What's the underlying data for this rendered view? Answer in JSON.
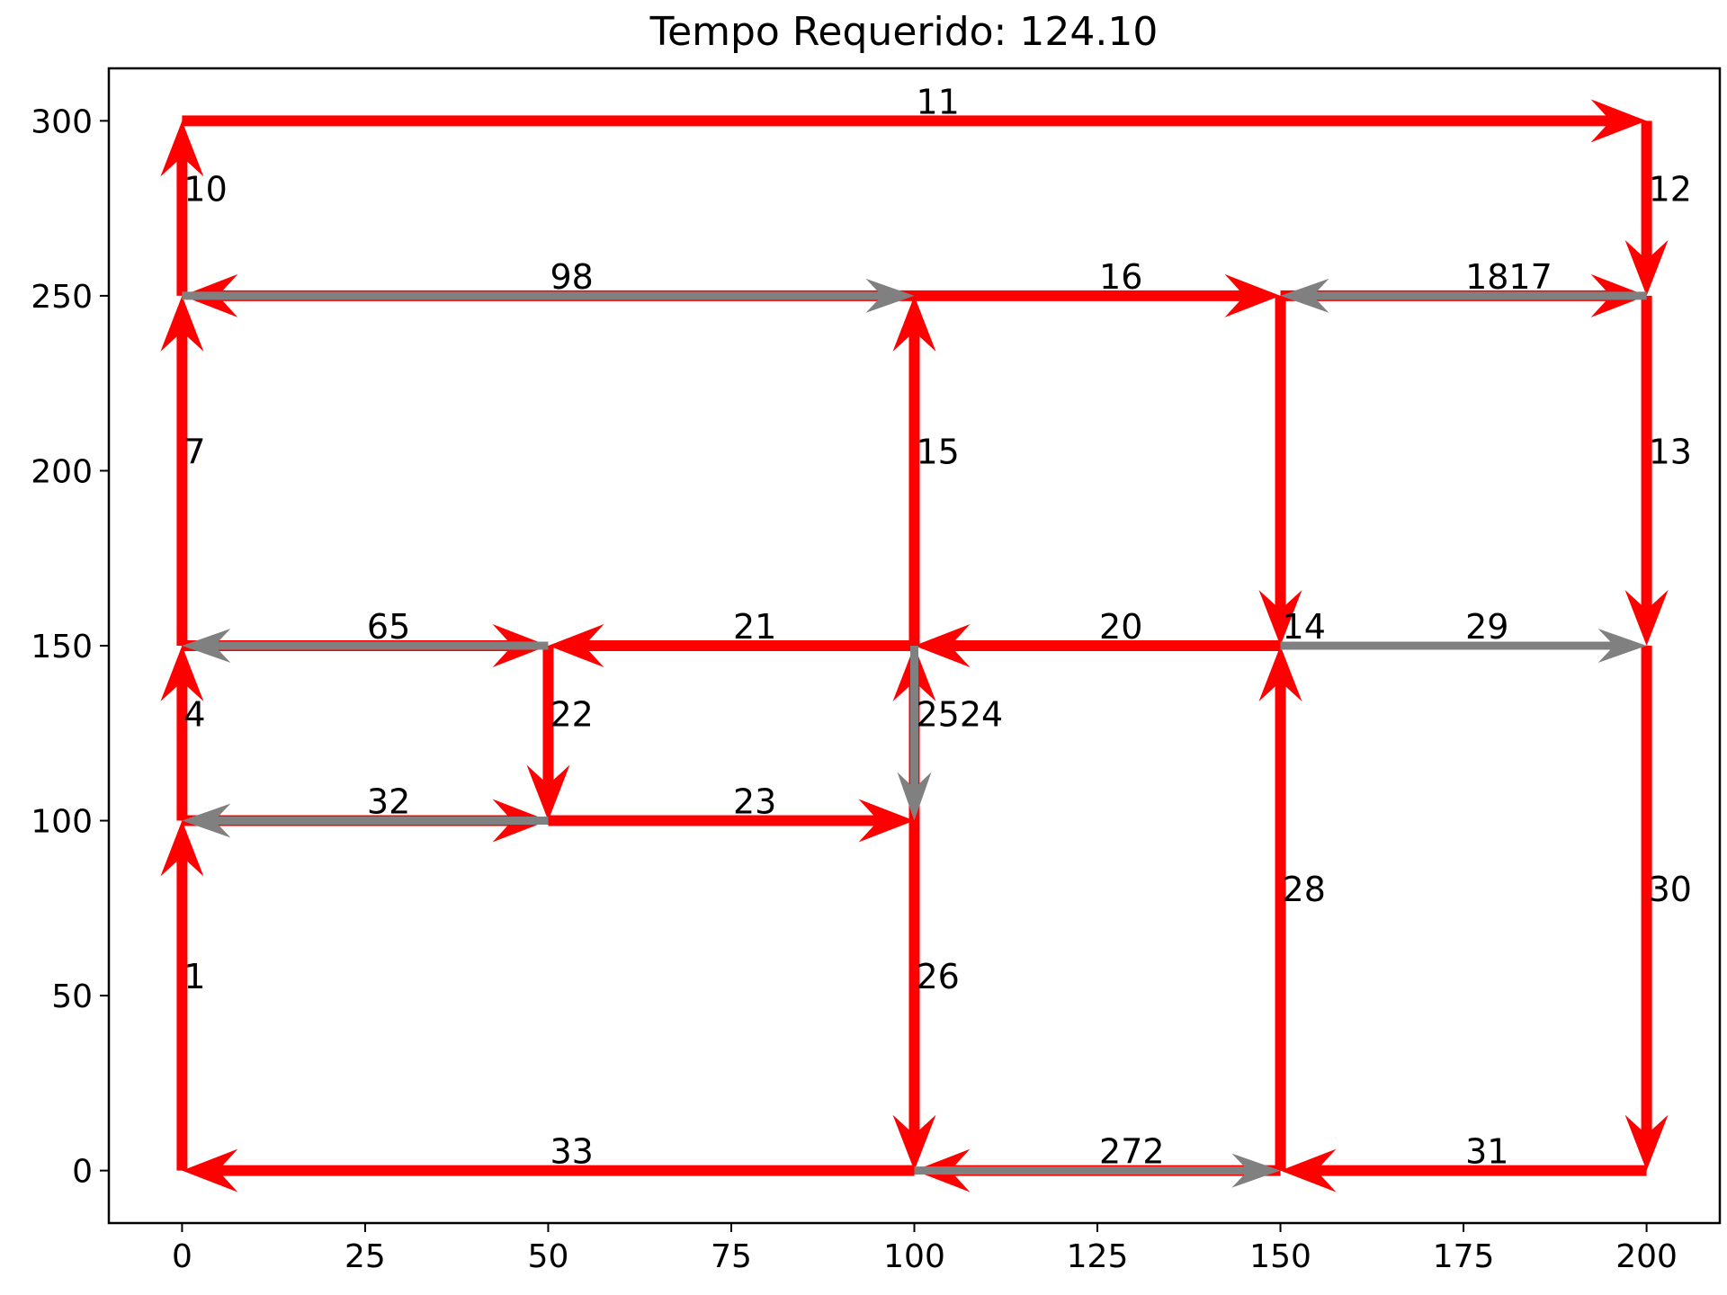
{
  "chart_data": {
    "type": "directed-graph",
    "title": "Tempo Requerido: 124.10",
    "xlim": [
      -10,
      210
    ],
    "ylim": [
      -15,
      315
    ],
    "xticks": [
      0,
      25,
      50,
      75,
      100,
      125,
      150,
      175,
      200
    ],
    "yticks": [
      0,
      50,
      100,
      150,
      200,
      250,
      300
    ],
    "colors": {
      "traversed": "#ff0000",
      "deadhead": "#808080",
      "axis": "#000000"
    },
    "edges": [
      {
        "label": "1",
        "from": [
          0,
          0
        ],
        "to": [
          0,
          100
        ],
        "style": "red"
      },
      {
        "label": "4",
        "from": [
          0,
          100
        ],
        "to": [
          0,
          150
        ],
        "style": "red"
      },
      {
        "label": "7",
        "from": [
          0,
          150
        ],
        "to": [
          0,
          250
        ],
        "style": "red"
      },
      {
        "label": "10",
        "from": [
          0,
          250
        ],
        "to": [
          0,
          300
        ],
        "style": "red"
      },
      {
        "label": "11",
        "from": [
          0,
          300
        ],
        "to": [
          200,
          300
        ],
        "style": "red"
      },
      {
        "label": "12",
        "from": [
          200,
          300
        ],
        "to": [
          200,
          250
        ],
        "style": "red"
      },
      {
        "label": "13",
        "from": [
          200,
          250
        ],
        "to": [
          200,
          150
        ],
        "style": "red"
      },
      {
        "label": "30",
        "from": [
          200,
          150
        ],
        "to": [
          200,
          0
        ],
        "style": "red"
      },
      {
        "label": "31",
        "from": [
          200,
          0
        ],
        "to": [
          150,
          0
        ],
        "style": "red"
      },
      {
        "label": "28",
        "from": [
          150,
          0
        ],
        "to": [
          150,
          150
        ],
        "style": "red"
      },
      {
        "label": "14",
        "from": [
          150,
          250
        ],
        "to": [
          150,
          150
        ],
        "style": "red"
      },
      {
        "label": "16",
        "from": [
          100,
          250
        ],
        "to": [
          150,
          250
        ],
        "style": "red"
      },
      {
        "label": "15",
        "from": [
          100,
          150
        ],
        "to": [
          100,
          250
        ],
        "style": "red"
      },
      {
        "label": "21",
        "from": [
          100,
          150
        ],
        "to": [
          50,
          150
        ],
        "style": "red"
      },
      {
        "label": "22",
        "from": [
          50,
          150
        ],
        "to": [
          50,
          100
        ],
        "style": "red"
      },
      {
        "label": "23",
        "from": [
          50,
          100
        ],
        "to": [
          100,
          100
        ],
        "style": "red"
      },
      {
        "label": "24",
        "from": [
          100,
          100
        ],
        "to": [
          100,
          150
        ],
        "style": "red"
      },
      {
        "label": "26",
        "from": [
          100,
          100
        ],
        "to": [
          100,
          0
        ],
        "style": "red"
      },
      {
        "label": "33",
        "from": [
          100,
          0
        ],
        "to": [
          0,
          0
        ],
        "style": "red"
      },
      {
        "label": "8",
        "from": [
          100,
          250
        ],
        "to": [
          0,
          250
        ],
        "style": "red"
      },
      {
        "label": "9",
        "from": [
          0,
          250
        ],
        "to": [
          100,
          250
        ],
        "style": "gray"
      },
      {
        "label": "17",
        "from": [
          150,
          250
        ],
        "to": [
          200,
          250
        ],
        "style": "red"
      },
      {
        "label": "18",
        "from": [
          200,
          250
        ],
        "to": [
          150,
          250
        ],
        "style": "gray"
      },
      {
        "label": "20",
        "from": [
          150,
          150
        ],
        "to": [
          100,
          150
        ],
        "style": "red"
      },
      {
        "label": "29",
        "from": [
          150,
          150
        ],
        "to": [
          200,
          150
        ],
        "style": "gray"
      },
      {
        "label": "5",
        "from": [
          0,
          150
        ],
        "to": [
          50,
          150
        ],
        "style": "red"
      },
      {
        "label": "6",
        "from": [
          50,
          150
        ],
        "to": [
          0,
          150
        ],
        "style": "gray"
      },
      {
        "label": "3",
        "from": [
          0,
          100
        ],
        "to": [
          50,
          100
        ],
        "style": "red"
      },
      {
        "label": "32",
        "from": [
          50,
          100
        ],
        "to": [
          0,
          100
        ],
        "style": "gray"
      },
      {
        "label": "27",
        "from": [
          150,
          0
        ],
        "to": [
          100,
          0
        ],
        "style": "red"
      },
      {
        "label": "2",
        "from": [
          100,
          0
        ],
        "to": [
          150,
          0
        ],
        "style": "gray"
      },
      {
        "label": "25",
        "from": [
          100,
          150
        ],
        "to": [
          100,
          100
        ],
        "style": "gray"
      }
    ],
    "labels": [
      {
        "text": "1",
        "x": 0,
        "y": 50
      },
      {
        "text": "4",
        "x": 0,
        "y": 125
      },
      {
        "text": "7",
        "x": 0,
        "y": 200
      },
      {
        "text": "10",
        "x": 0,
        "y": 275
      },
      {
        "text": "11",
        "x": 100,
        "y": 300
      },
      {
        "text": "12",
        "x": 200,
        "y": 275
      },
      {
        "text": "13",
        "x": 200,
        "y": 200
      },
      {
        "text": "30",
        "x": 200,
        "y": 75
      },
      {
        "text": "31",
        "x": 175,
        "y": 0
      },
      {
        "text": "28",
        "x": 150,
        "y": 75
      },
      {
        "text": "14",
        "x": 150,
        "y": 150
      },
      {
        "text": "16",
        "x": 125,
        "y": 250
      },
      {
        "text": "15",
        "x": 100,
        "y": 200
      },
      {
        "text": "21",
        "x": 75,
        "y": 150
      },
      {
        "text": "22",
        "x": 50,
        "y": 125
      },
      {
        "text": "23",
        "x": 75,
        "y": 100
      },
      {
        "text": "2524",
        "x": 100,
        "y": 125
      },
      {
        "text": "26",
        "x": 100,
        "y": 50
      },
      {
        "text": "33",
        "x": 50,
        "y": 0
      },
      {
        "text": "98",
        "x": 50,
        "y": 250
      },
      {
        "text": "1817",
        "x": 175,
        "y": 250
      },
      {
        "text": "20",
        "x": 125,
        "y": 150
      },
      {
        "text": "29",
        "x": 175,
        "y": 150
      },
      {
        "text": "65",
        "x": 25,
        "y": 150
      },
      {
        "text": "32",
        "x": 25,
        "y": 100
      },
      {
        "text": "272",
        "x": 125,
        "y": 0
      }
    ]
  }
}
